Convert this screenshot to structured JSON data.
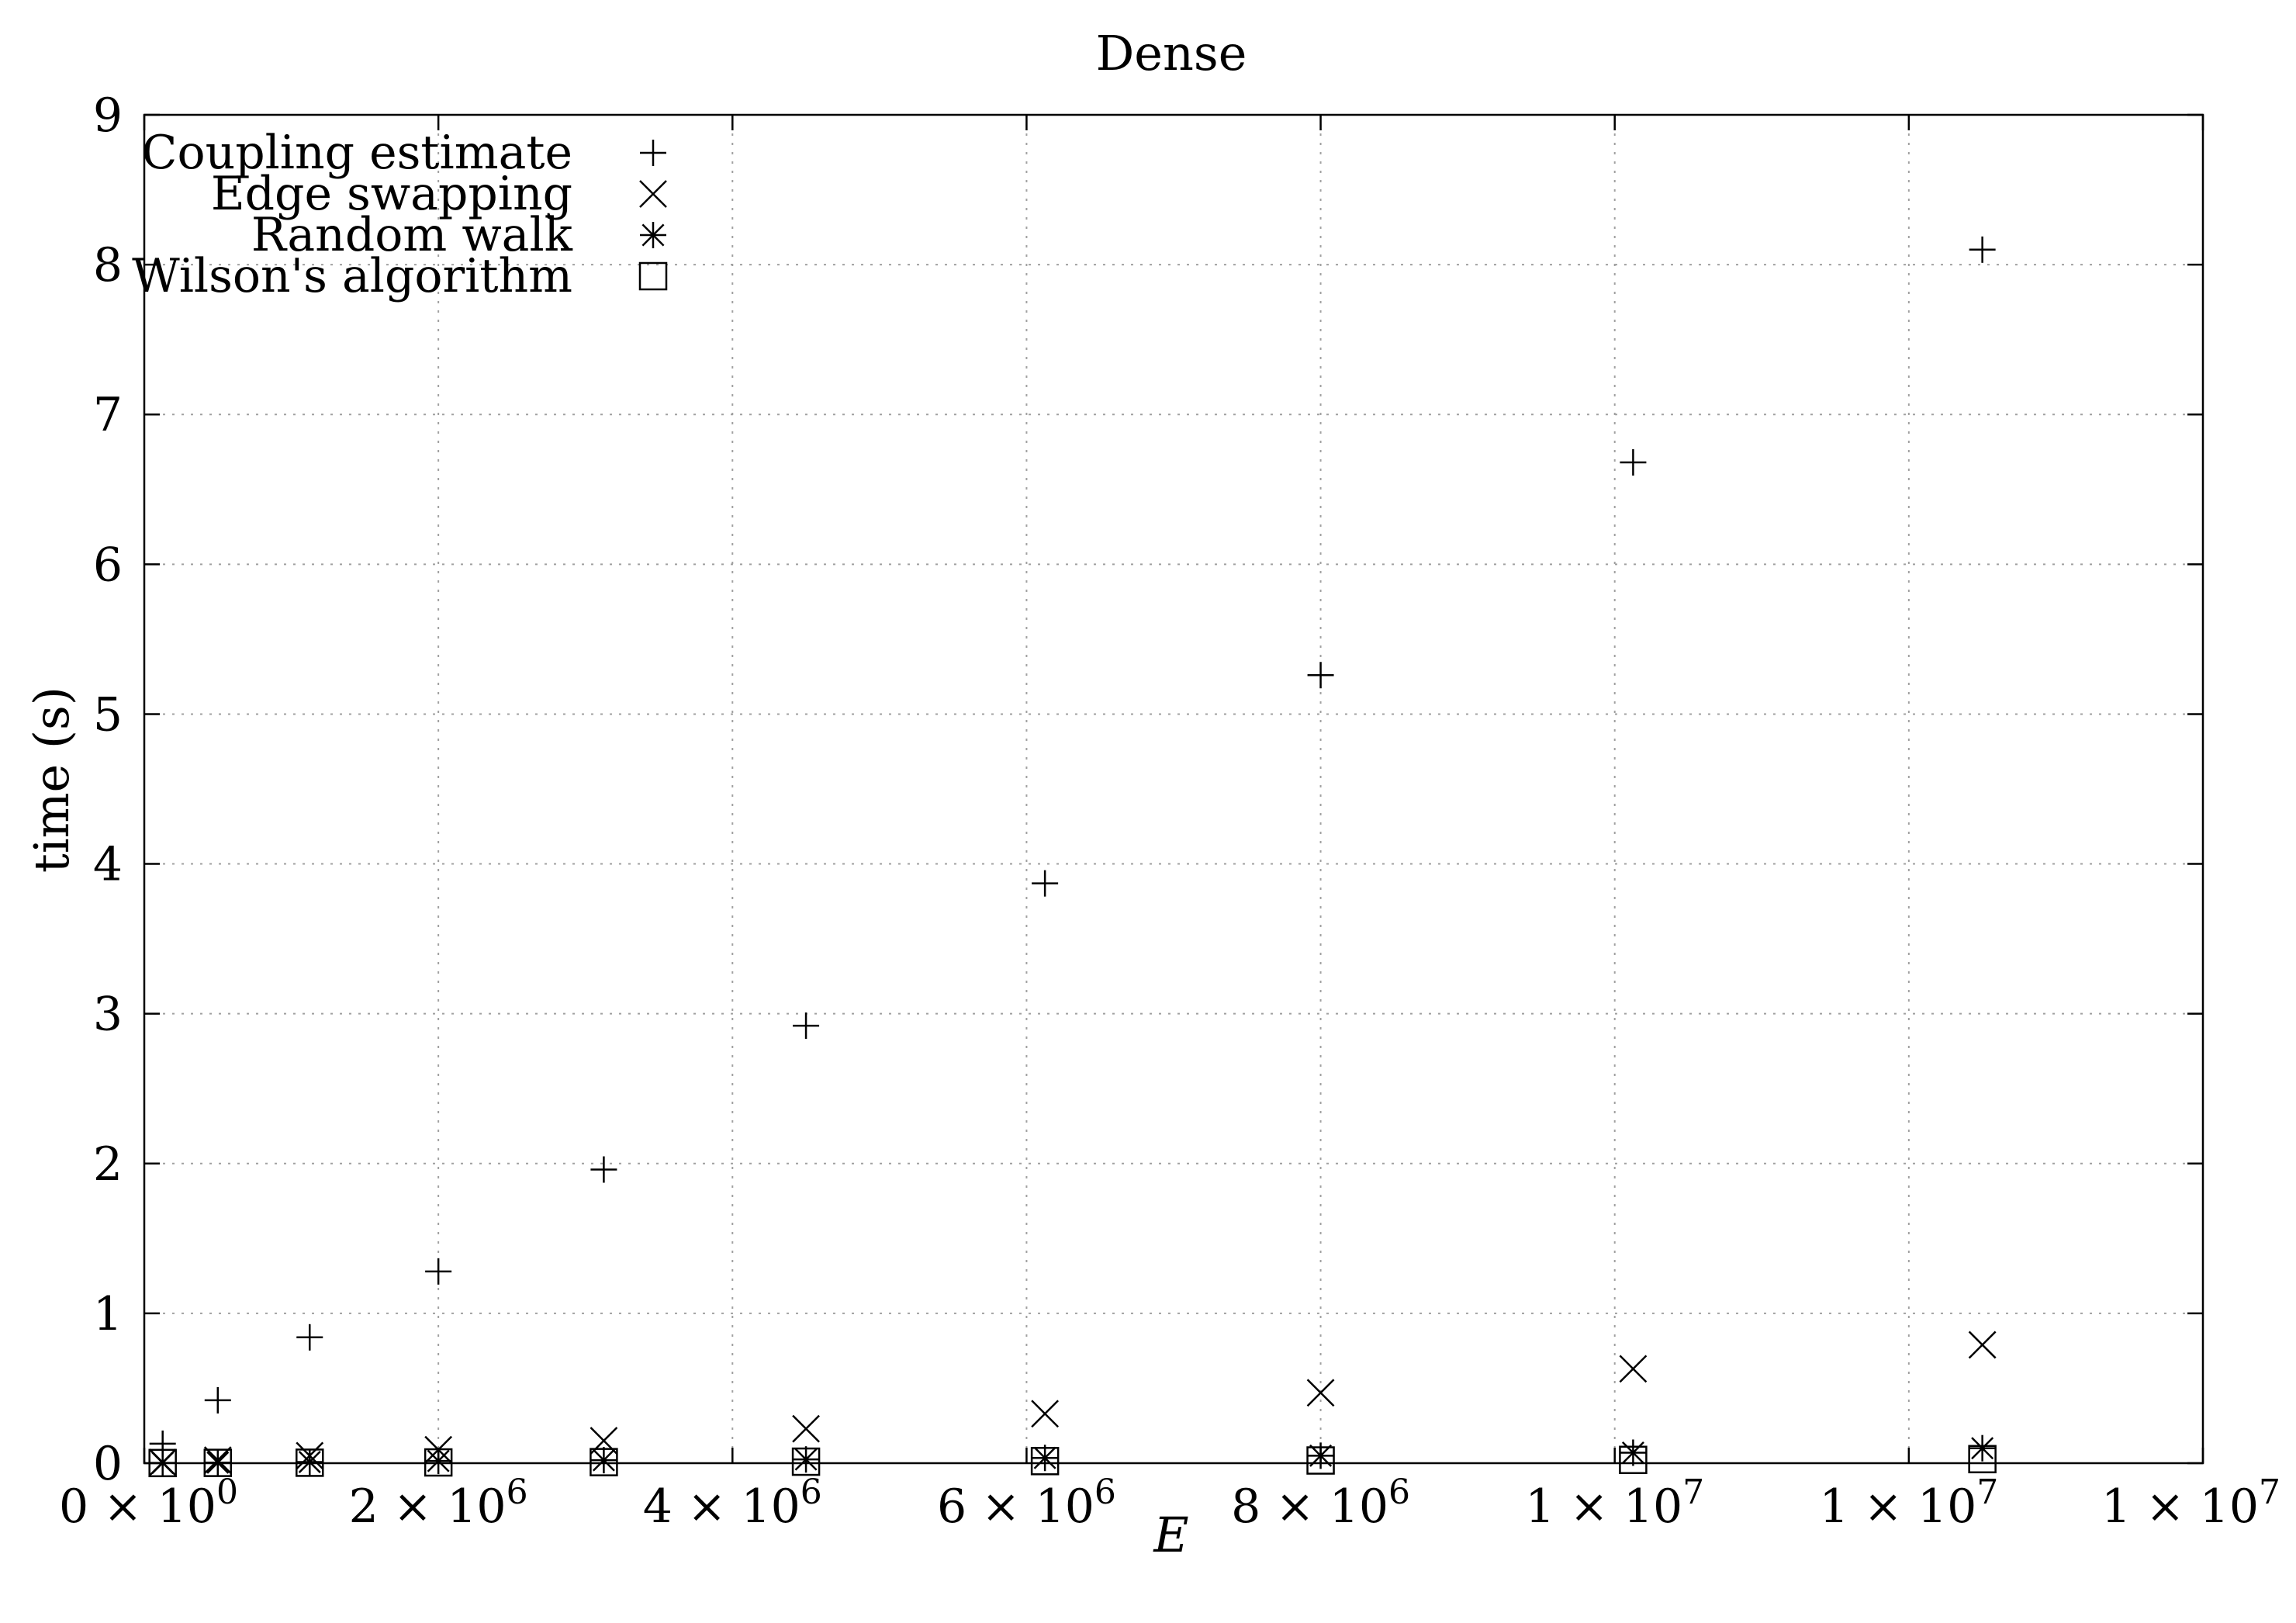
{
  "chart_data": {
    "type": "scatter",
    "title": "Dense",
    "xlabel": "E",
    "ylabel": "time (s)",
    "xlim": [
      0,
      14000000
    ],
    "ylim": [
      0,
      9
    ],
    "grid": true,
    "legend_position": "top-left",
    "x_tick_values": [
      0,
      2000000,
      4000000,
      6000000,
      8000000,
      10000000,
      12000000,
      14000000
    ],
    "x_tick_labels": [
      {
        "mantissa": "0 × 10",
        "exp": "0"
      },
      {
        "mantissa": "2 × 10",
        "exp": "6"
      },
      {
        "mantissa": "4 × 10",
        "exp": "6"
      },
      {
        "mantissa": "6 × 10",
        "exp": "6"
      },
      {
        "mantissa": "8 × 10",
        "exp": "6"
      },
      {
        "mantissa": "1 × 10",
        "exp": "7"
      },
      {
        "mantissa": "1 × 10",
        "exp": "7"
      },
      {
        "mantissa": "1 × 10",
        "exp": "7"
      }
    ],
    "y_tick_values": [
      0,
      1,
      2,
      3,
      4,
      5,
      6,
      7,
      8,
      9
    ],
    "y_tick_labels": [
      "0",
      "1",
      "2",
      "3",
      "4",
      "5",
      "6",
      "7",
      "8",
      "9"
    ],
    "x": [
      125000,
      500000,
      1125000,
      2000000,
      3125000,
      4500000,
      6125000,
      8000000,
      10125000,
      12500000
    ],
    "series": [
      {
        "name": "Coupling estimate",
        "marker": "plus",
        "values": [
          0.13,
          0.42,
          0.84,
          1.28,
          1.96,
          2.92,
          3.87,
          5.26,
          6.68,
          8.1
        ]
      },
      {
        "name": "Edge swapping",
        "marker": "cross",
        "values": [
          0.005,
          0.02,
          0.05,
          0.09,
          0.15,
          0.23,
          0.33,
          0.47,
          0.63,
          0.79
        ]
      },
      {
        "name": "Random walk",
        "marker": "star",
        "values": [
          0.002,
          0.004,
          0.008,
          0.015,
          0.02,
          0.025,
          0.035,
          0.05,
          0.07,
          0.1
        ]
      },
      {
        "name": "Wilson's algorithm",
        "marker": "square",
        "values": [
          0.001,
          0.002,
          0.003,
          0.005,
          0.007,
          0.01,
          0.014,
          0.018,
          0.022,
          0.027
        ]
      }
    ]
  }
}
